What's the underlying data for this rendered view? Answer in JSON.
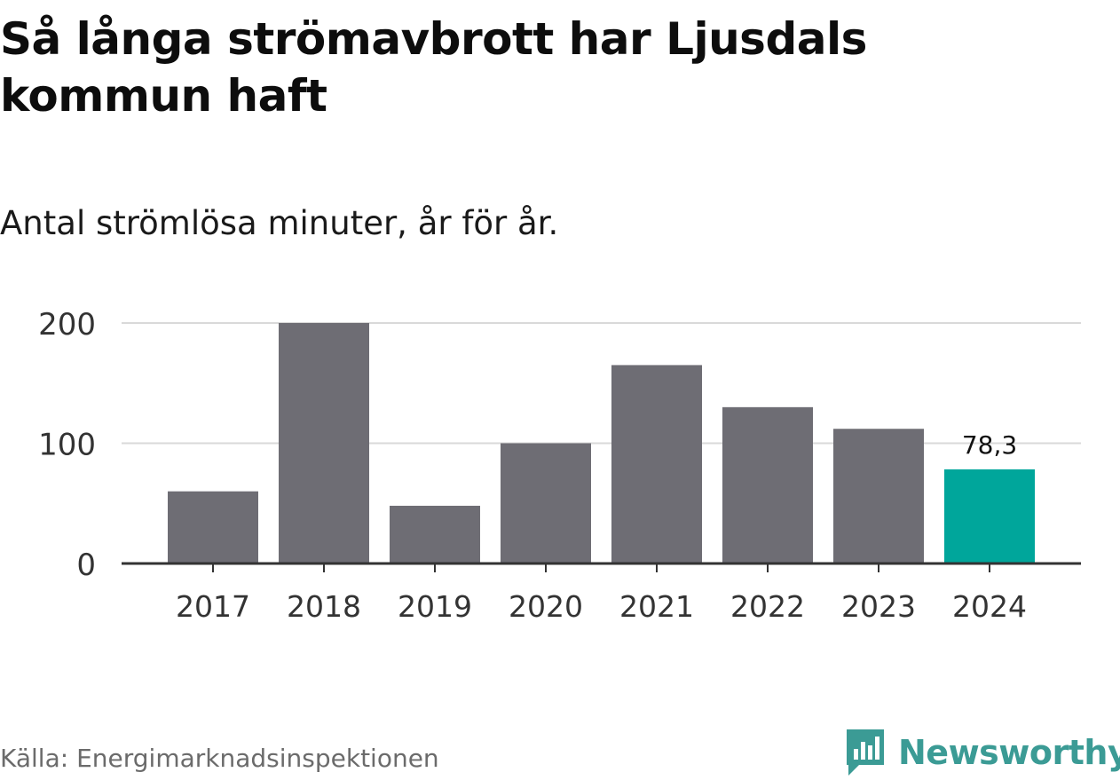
{
  "header": {
    "title": "Så långa strömavbrott har Ljusdals kommun haft",
    "subtitle": "Antal strömlösa minuter, år för år."
  },
  "footer": {
    "source": "Källa: Energimarknadsinspektionen",
    "brand": "Newsworthy",
    "brand_icon": "bar-chart-speech-bubble-icon"
  },
  "colors": {
    "bar": "#6e6d74",
    "highlight": "#00a69b",
    "grid": "#d9d9d9",
    "axis": "#333333",
    "brand": "#3b9b95"
  },
  "chart_data": {
    "type": "bar",
    "title": "Så långa strömavbrott har Ljusdals kommun haft",
    "subtitle": "Antal strömlösa minuter, år för år.",
    "categories": [
      "2017",
      "2018",
      "2019",
      "2020",
      "2021",
      "2022",
      "2023",
      "2024"
    ],
    "values": [
      60,
      200,
      48,
      100,
      165,
      130,
      112,
      78.3
    ],
    "highlight_index": 7,
    "data_labels": [
      {
        "index": 7,
        "text": "78,3"
      }
    ],
    "y_ticks": [
      0,
      100,
      200
    ],
    "ylim": [
      0,
      200
    ],
    "grid": true,
    "xlabel": "",
    "ylabel": ""
  }
}
